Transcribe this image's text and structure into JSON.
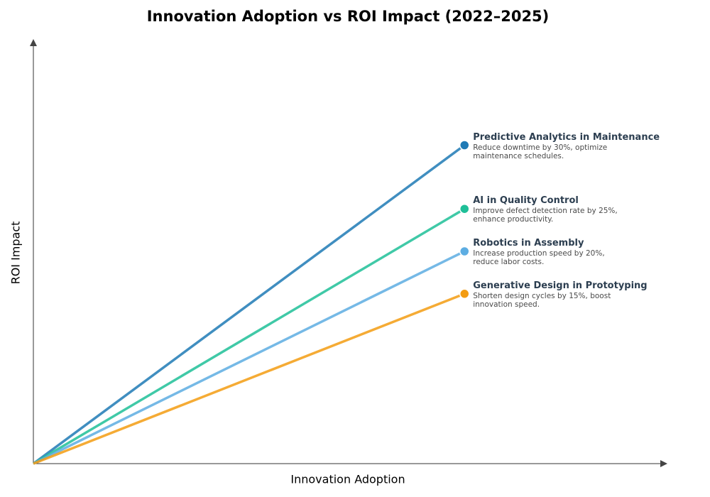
{
  "chart_data": {
    "type": "line",
    "title": "Innovation Adoption vs ROI Impact (2022–2025)",
    "x_label": "Innovation Adoption",
    "y_label": "ROI Impact",
    "xlim": [
      0,
      100
    ],
    "ylim": [
      0,
      100
    ],
    "grid": false,
    "series": [
      {
        "name": "Predictive Analytics in Maintenance",
        "description": "Reduce downtime by 30%, optimize maintenance schedules.",
        "color": "#1f7ab5",
        "x": [
          0,
          68
        ],
        "values": [
          0,
          75
        ]
      },
      {
        "name": "AI in Quality Control",
        "description": "Improve defect detection rate by 25%, enhance productivity.",
        "color": "#1fbf98",
        "x": [
          0,
          68
        ],
        "values": [
          0,
          60
        ]
      },
      {
        "name": "Robotics in Assembly",
        "description": "Increase production speed by 20%, reduce labor costs.",
        "color": "#5dade2",
        "x": [
          0,
          68
        ],
        "values": [
          0,
          50
        ]
      },
      {
        "name": "Generative Design in Prototyping",
        "description": "Shorten design cycles by 15%, boost innovation speed.",
        "color": "#f39c12",
        "x": [
          0,
          68
        ],
        "values": [
          0,
          40
        ]
      }
    ]
  }
}
